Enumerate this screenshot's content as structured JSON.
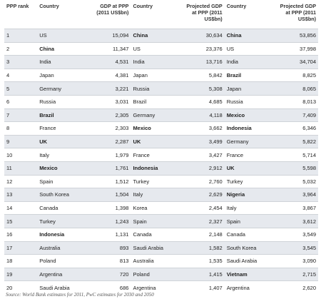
{
  "headers": {
    "rank": "PPP rank",
    "country_2011": "Country",
    "gdp_2011": "GDP at PPP (2011 US$bn)",
    "country_2030": "Country",
    "gdp_2030": "Projected GDP at PPP (2011 US$bn)",
    "country_2050": "Country",
    "gdp_2050": "Projected GDP at PPP (2011 US$bn)"
  },
  "rows": [
    {
      "rank": "1",
      "c1": "US",
      "v1": "15,094",
      "c2": "China",
      "v2": "30,634",
      "c3": "China",
      "v3": "53,856",
      "b1": false,
      "b2": true,
      "b3": true
    },
    {
      "rank": "2",
      "c1": "China",
      "v1": "11,347",
      "c2": "US",
      "v2": "23,376",
      "c3": "US",
      "v3": "37,998",
      "b1": true,
      "b2": false,
      "b3": false
    },
    {
      "rank": "3",
      "c1": "India",
      "v1": "4,531",
      "c2": "India",
      "v2": "13,716",
      "c3": "India",
      "v3": "34,704",
      "b1": false,
      "b2": false,
      "b3": false
    },
    {
      "rank": "4",
      "c1": "Japan",
      "v1": "4,381",
      "c2": "Japan",
      "v2": "5,842",
      "c3": "Brazil",
      "v3": "8,825",
      "b1": false,
      "b2": false,
      "b3": true
    },
    {
      "rank": "5",
      "c1": "Germany",
      "v1": "3,221",
      "c2": "Russia",
      "v2": "5,308",
      "c3": "Japan",
      "v3": "8,065",
      "b1": false,
      "b2": false,
      "b3": false
    },
    {
      "rank": "6",
      "c1": "Russia",
      "v1": "3,031",
      "c2": "Brazil",
      "v2": "4,685",
      "c3": "Russia",
      "v3": "8,013",
      "b1": false,
      "b2": false,
      "b3": false
    },
    {
      "rank": "7",
      "c1": "Brazil",
      "v1": "2,305",
      "c2": "Germany",
      "v2": "4,118",
      "c3": "Mexico",
      "v3": "7,409",
      "b1": true,
      "b2": false,
      "b3": true
    },
    {
      "rank": "8",
      "c1": "France",
      "v1": "2,303",
      "c2": "Mexico",
      "v2": "3,662",
      "c3": "Indonesia",
      "v3": "6,346",
      "b1": false,
      "b2": true,
      "b3": true
    },
    {
      "rank": "9",
      "c1": "UK",
      "v1": "2,287",
      "c2": "UK",
      "v2": "3,499",
      "c3": "Germany",
      "v3": "5,822",
      "b1": true,
      "b2": true,
      "b3": false
    },
    {
      "rank": "10",
      "c1": "Italy",
      "v1": "1,979",
      "c2": "France",
      "v2": "3,427",
      "c3": "France",
      "v3": "5,714",
      "b1": false,
      "b2": false,
      "b3": false
    },
    {
      "rank": "11",
      "c1": "Mexico",
      "v1": "1,761",
      "c2": "Indonesia",
      "v2": "2,912",
      "c3": "UK",
      "v3": "5,598",
      "b1": true,
      "b2": true,
      "b3": true
    },
    {
      "rank": "12",
      "c1": "Spain",
      "v1": "1,512",
      "c2": "Turkey",
      "v2": "2,760",
      "c3": "Turkey",
      "v3": "5,032",
      "b1": false,
      "b2": false,
      "b3": false
    },
    {
      "rank": "13",
      "c1": "South Korea",
      "v1": "1,504",
      "c2": "Italy",
      "v2": "2,629",
      "c3": "Nigeria",
      "v3": "3,964",
      "b1": false,
      "b2": false,
      "b3": true
    },
    {
      "rank": "14",
      "c1": "Canada",
      "v1": "1,398",
      "c2": "Korea",
      "v2": "2,454",
      "c3": "Italy",
      "v3": "3,867",
      "b1": false,
      "b2": false,
      "b3": false
    },
    {
      "rank": "15",
      "c1": "Turkey",
      "v1": "1,243",
      "c2": "Spain",
      "v2": "2,327",
      "c3": "Spain",
      "v3": "3,612",
      "b1": false,
      "b2": false,
      "b3": false
    },
    {
      "rank": "16",
      "c1": "Indonesia",
      "v1": "1,131",
      "c2": "Canada",
      "v2": "2,148",
      "c3": "Canada",
      "v3": "3,549",
      "b1": true,
      "b2": false,
      "b3": false
    },
    {
      "rank": "17",
      "c1": "Australia",
      "v1": "893",
      "c2": "Saudi Arabia",
      "v2": "1,582",
      "c3": "South Korea",
      "v3": "3,545",
      "b1": false,
      "b2": false,
      "b3": false
    },
    {
      "rank": "18",
      "c1": "Poland",
      "v1": "813",
      "c2": "Australia",
      "v2": "1,535",
      "c3": "Saudi Arabia",
      "v3": "3,090",
      "b1": false,
      "b2": false,
      "b3": false
    },
    {
      "rank": "19",
      "c1": "Argentina",
      "v1": "720",
      "c2": "Poland",
      "v2": "1,415",
      "c3": "Vietnam",
      "v3": "2,715",
      "b1": false,
      "b2": false,
      "b3": true
    },
    {
      "rank": "20",
      "c1": "Saudi Arabia",
      "v1": "686",
      "c2": "Argentina",
      "v2": "1,407",
      "c3": "Argentina",
      "v3": "2,620",
      "b1": false,
      "b2": false,
      "b3": false
    }
  ],
  "source": "Source: World Bank estimates for 2011, PwC estimates for 2030 and 2050",
  "colors": {
    "row_shade": "#e6e9ee",
    "row_white": "#ffffff",
    "row_border": "#cfd3d8"
  }
}
